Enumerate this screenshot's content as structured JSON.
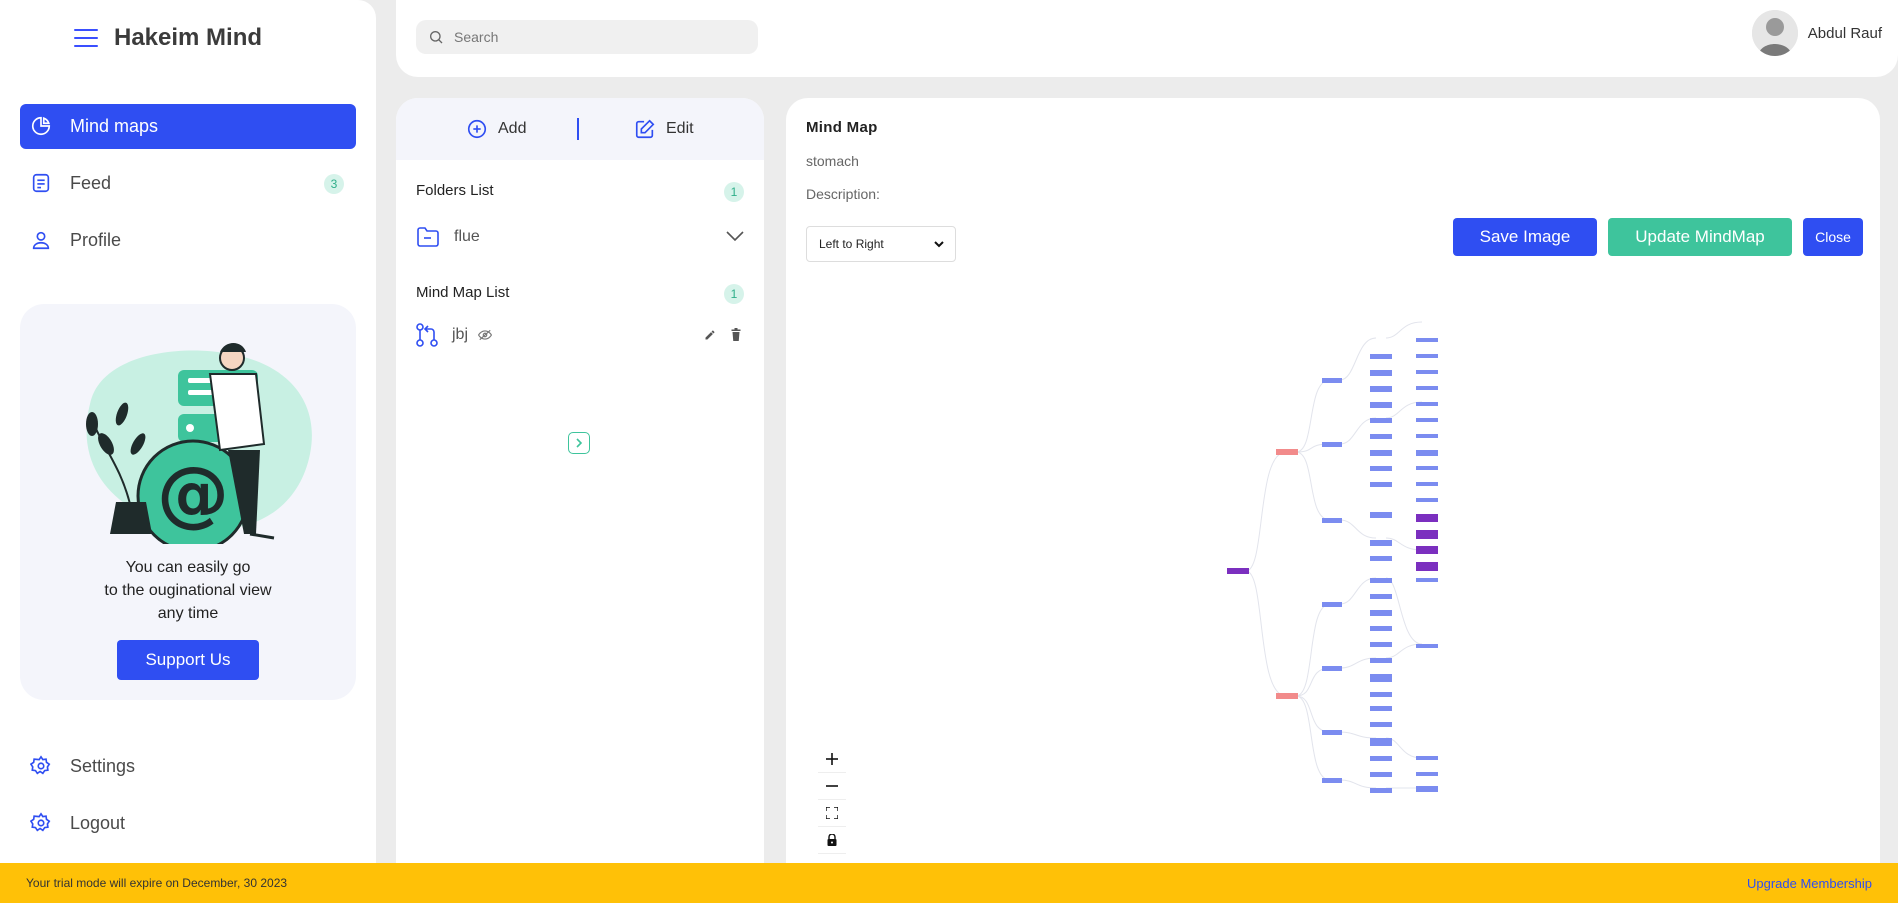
{
  "app": {
    "title": "Hakeim Mind"
  },
  "sidebar": {
    "items": [
      {
        "label": "Mind maps",
        "active": true
      },
      {
        "label": "Feed",
        "badge": "3"
      },
      {
        "label": "Profile"
      }
    ],
    "bottom": [
      {
        "label": "Settings"
      },
      {
        "label": "Logout"
      }
    ],
    "promo": {
      "line1": "You can easily go",
      "line2": "to the ouginational view",
      "line3": "any time",
      "button": "Support Us"
    }
  },
  "header": {
    "search_placeholder": "Search",
    "user_name": "Abdul Rauf"
  },
  "folders_panel": {
    "add_label": "Add",
    "edit_label": "Edit",
    "folders_title": "Folders List",
    "folders_count": "1",
    "folders": [
      {
        "name": "flue"
      }
    ],
    "mindmaps_title": "Mind Map List",
    "mindmaps_count": "1",
    "mindmaps": [
      {
        "name": "jbj"
      }
    ]
  },
  "mindmap": {
    "title": "Mind Map",
    "subject": "stomach",
    "description_label": "Description:",
    "layout_value": "Left to Right",
    "save_label": "Save Image",
    "update_label": "Update MindMap",
    "close_label": "Close"
  },
  "trial": {
    "message": "Your trial mode will expire on December, 30 2023",
    "upgrade": "Upgrade Membership"
  },
  "colors": {
    "accent": "#2f4ef2",
    "green": "#3ec49c",
    "trial": "#ffc107",
    "node_blue": "#7b8cf0",
    "node_red": "#f28b8b",
    "node_purple": "#7b2fbf"
  }
}
